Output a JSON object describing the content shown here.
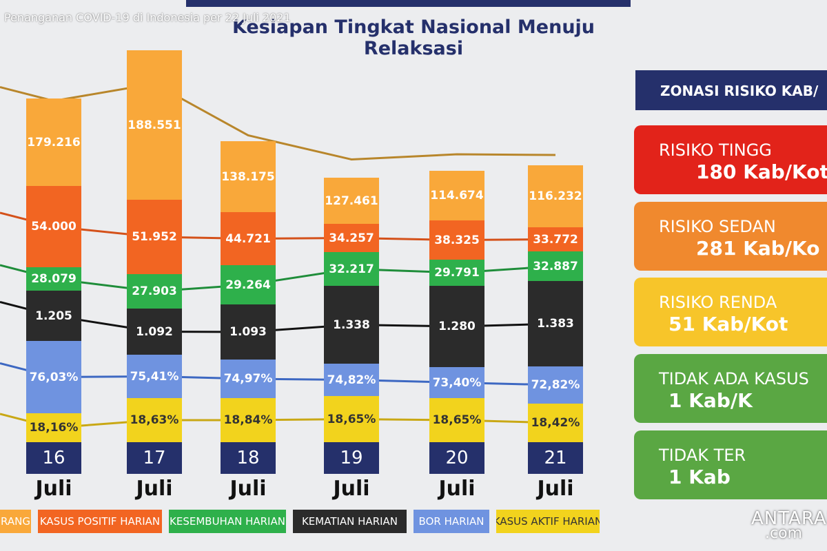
{
  "header": {
    "caption": "Penanganan COVID-19 di Indonesia per 22 Juli 2021",
    "title": "Kesiapan Tingkat Nasional Menuju Relaksasi"
  },
  "columns": [
    {
      "day": "16",
      "month": "Juli",
      "values": [
        "179.216",
        "54.000",
        "28.079",
        "1.205",
        "76,03%",
        "18,16%"
      ]
    },
    {
      "day": "17",
      "month": "Juli",
      "values": [
        "188.551",
        "51.952",
        "27.903",
        "1.092",
        "75,41%",
        "18,63%"
      ]
    },
    {
      "day": "18",
      "month": "Juli",
      "values": [
        "138.175",
        "44.721",
        "29.264",
        "1.093",
        "74,97%",
        "18,84%"
      ]
    },
    {
      "day": "19",
      "month": "Juli",
      "values": [
        "127.461",
        "34.257",
        "32.217",
        "1.338",
        "74,82%",
        "18,65%"
      ]
    },
    {
      "day": "20",
      "month": "Juli",
      "values": [
        "114.674",
        "38.325",
        "29.791",
        "1.280",
        "73,40%",
        "18,65%"
      ]
    },
    {
      "day": "21",
      "month": "Juli",
      "values": [
        "116.232",
        "33.772",
        "32.887",
        "1.383",
        "72,82%",
        "18,42%"
      ]
    }
  ],
  "legend": [
    "RANG",
    "KASUS POSITIF HARIAN",
    "KESEMBUHAN HARIAN",
    "KEMATIAN HARIAN",
    "BOR HARIAN",
    "KASUS AKTIF HARIAN"
  ],
  "zonasi": {
    "title": "ZONASI RISIKO KAB/",
    "items": [
      {
        "label": "RISIKO TINGG",
        "count": "180 Kab/Kot"
      },
      {
        "label": "RISIKO SEDAN",
        "count": "281 Kab/Ko"
      },
      {
        "label": "RISIKO RENDA",
        "count": "51 Kab/Kot"
      },
      {
        "label": "TIDAK ADA KASUS",
        "count": "1 Kab/K"
      },
      {
        "label": "TIDAK TER",
        "count": "1 Kab"
      }
    ]
  },
  "watermark": {
    "brand": "ANTARANEWS",
    "domain": ".com"
  }
}
